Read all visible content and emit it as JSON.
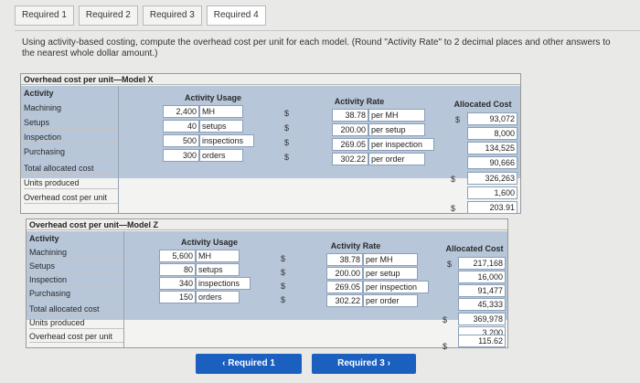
{
  "tabs": [
    "Required 1",
    "Required 2",
    "Required 3",
    "Required 4"
  ],
  "active_tab": 3,
  "instructions": "Using activity-based costing, compute the overhead cost per unit for each model. (Round \"Activity Rate\" to 2 decimal places and other answers to the nearest whole dollar amount.)",
  "model_x": {
    "title": "Overhead cost per unit—Model X",
    "col_activity": "Activity",
    "col_usage": "Activity Usage",
    "col_rate": "Activity Rate",
    "col_alloc": "Allocated Cost",
    "rows": [
      {
        "label": "Machining",
        "usage": "2,400",
        "usage_unit": "MH",
        "rate": "38.78",
        "rate_unit": "per MH",
        "alloc": "93,072"
      },
      {
        "label": "Setups",
        "usage": "40",
        "usage_unit": "setups",
        "rate": "200.00",
        "rate_unit": "per setup",
        "alloc": "8,000"
      },
      {
        "label": "Inspection",
        "usage": "500",
        "usage_unit": "inspections",
        "rate": "269.05",
        "rate_unit": "per inspection",
        "alloc": "134,525"
      },
      {
        "label": "Purchasing",
        "usage": "300",
        "usage_unit": "orders",
        "rate": "302.22",
        "rate_unit": "per order",
        "alloc": "90,666"
      }
    ],
    "total_label": "Total allocated cost",
    "total": "326,263",
    "units_label": "Units produced",
    "units": "1,600",
    "per_unit_label": "Overhead cost per unit",
    "per_unit": "203.91"
  },
  "model_z": {
    "title": "Overhead cost per unit—Model Z",
    "col_activity": "Activity",
    "col_usage": "Activity Usage",
    "col_rate": "Activity Rate",
    "col_alloc": "Allocated Cost",
    "rows": [
      {
        "label": "Machining",
        "usage": "5,600",
        "usage_unit": "MH",
        "rate": "38.78",
        "rate_unit": "per MH",
        "alloc": "217,168"
      },
      {
        "label": "Setups",
        "usage": "80",
        "usage_unit": "setups",
        "rate": "200.00",
        "rate_unit": "per setup",
        "alloc": "16,000"
      },
      {
        "label": "Inspection",
        "usage": "340",
        "usage_unit": "inspections",
        "rate": "269.05",
        "rate_unit": "per inspection",
        "alloc": "91,477"
      },
      {
        "label": "Purchasing",
        "usage": "150",
        "usage_unit": "orders",
        "rate": "302.22",
        "rate_unit": "per order",
        "alloc": "45,333"
      }
    ],
    "total_label": "Total allocated cost",
    "total": "369,978",
    "units_label": "Units produced",
    "units": "3,200",
    "per_unit_label": "Overhead cost per unit",
    "per_unit": "115.62"
  },
  "dollar_sign": "$",
  "nav": {
    "prev_label": "Required 1",
    "next_label": "Required 3"
  },
  "colors": {
    "header_band": "#b7c6d9",
    "button": "#1b5fbf"
  }
}
